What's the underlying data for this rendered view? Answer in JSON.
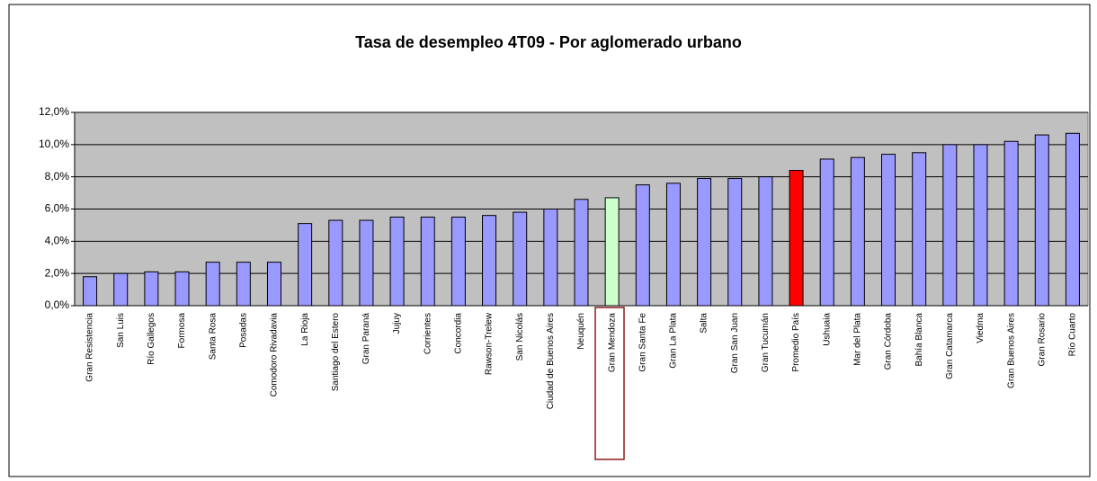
{
  "chart_data": {
    "type": "bar",
    "title": "Tasa de desempleo 4T09 - Por aglomerado urbano",
    "categories": [
      "Gran Resistencia",
      "San Luis",
      "Río Gallegos",
      "Formosa",
      "Santa Rosa",
      "Posadas",
      "Comodoro Rivadavia",
      "La Rioja",
      "Santiago del Estero",
      "Gran Paraná",
      "Jujuy",
      "Corrientes",
      "Concordia",
      "Rawson-Trelew",
      "San Nicolás",
      "Ciudad de Buenos Aires",
      "Neuquén",
      "Gran Mendoza",
      "Gran Santa Fe",
      "Gran La Plata",
      "Salta",
      "Gran San Juan",
      "Gran Tucumán",
      "Promedio País",
      "Ushuaia",
      "Mar del Plata",
      "Gran Córdoba",
      "Bahía Blanca",
      "Gran Catamarca",
      "Viedma",
      "Gran Buenos Aires",
      "Gran Rosario",
      "Río Cuarto"
    ],
    "values": [
      1.8,
      2.0,
      2.1,
      2.1,
      2.7,
      2.7,
      2.7,
      5.1,
      5.3,
      5.3,
      5.5,
      5.5,
      5.5,
      5.6,
      5.8,
      6.0,
      6.6,
      6.7,
      7.5,
      7.6,
      7.9,
      7.9,
      8.0,
      8.4,
      9.1,
      9.2,
      9.4,
      9.5,
      10.0,
      10.0,
      10.2,
      10.6,
      10.7
    ],
    "colors": [
      "#9999ff",
      "#9999ff",
      "#9999ff",
      "#9999ff",
      "#9999ff",
      "#9999ff",
      "#9999ff",
      "#9999ff",
      "#9999ff",
      "#9999ff",
      "#9999ff",
      "#9999ff",
      "#9999ff",
      "#9999ff",
      "#9999ff",
      "#9999ff",
      "#9999ff",
      "#ccffcc",
      "#9999ff",
      "#9999ff",
      "#9999ff",
      "#9999ff",
      "#9999ff",
      "#ff0000",
      "#9999ff",
      "#9999ff",
      "#9999ff",
      "#9999ff",
      "#9999ff",
      "#9999ff",
      "#9999ff",
      "#9999ff",
      "#9999ff"
    ],
    "ylim": [
      0,
      12
    ],
    "yticks": [
      {
        "value": 0,
        "label": "0,0%"
      },
      {
        "value": 2,
        "label": "2,0%"
      },
      {
        "value": 4,
        "label": "4,0%"
      },
      {
        "value": 6,
        "label": "6,0%"
      },
      {
        "value": 8,
        "label": "8,0%"
      },
      {
        "value": 10,
        "label": "10,0%"
      },
      {
        "value": 12,
        "label": "12,0%"
      }
    ],
    "grid": true
  }
}
